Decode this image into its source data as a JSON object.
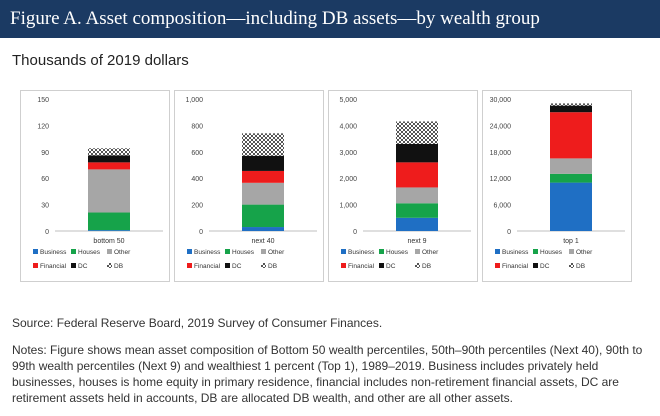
{
  "header": {
    "title": "Figure A. Asset composition—including DB assets—by wealth group"
  },
  "subtitle": "Thousands of 2019 dollars",
  "legend_labels": [
    "Business",
    "Houses",
    "Other",
    "Financial",
    "DC",
    "DB"
  ],
  "colors": {
    "header_bg": "#1b3a63",
    "Business": "#1f6fc4",
    "Houses": "#16a34a",
    "Other": "#a6a6a6",
    "Financial": "#ee1c1c",
    "DC": "#111111",
    "DB": "hatch-gray"
  },
  "chart_data": [
    {
      "type": "bar",
      "stacked": true,
      "categories": [
        "bottom 50"
      ],
      "yticks": [
        "0",
        "30",
        "60",
        "90",
        "120",
        "150"
      ],
      "ylim": [
        0,
        150
      ],
      "series": [
        {
          "name": "Business",
          "values": [
            1
          ]
        },
        {
          "name": "Houses",
          "values": [
            20
          ]
        },
        {
          "name": "Other",
          "values": [
            49
          ]
        },
        {
          "name": "Financial",
          "values": [
            8
          ]
        },
        {
          "name": "DC",
          "values": [
            8
          ]
        },
        {
          "name": "DB",
          "values": [
            8
          ]
        }
      ],
      "legend": "bottom"
    },
    {
      "type": "bar",
      "stacked": true,
      "categories": [
        "next 40"
      ],
      "yticks": [
        "0",
        "200",
        "400",
        "600",
        "800",
        "1,000"
      ],
      "ylim": [
        0,
        1000
      ],
      "series": [
        {
          "name": "Business",
          "values": [
            30
          ]
        },
        {
          "name": "Houses",
          "values": [
            170
          ]
        },
        {
          "name": "Other",
          "values": [
            165
          ]
        },
        {
          "name": "Financial",
          "values": [
            90
          ]
        },
        {
          "name": "DC",
          "values": [
            115
          ]
        },
        {
          "name": "DB",
          "values": [
            170
          ]
        }
      ],
      "legend": "bottom"
    },
    {
      "type": "bar",
      "stacked": true,
      "categories": [
        "next 9"
      ],
      "yticks": [
        "0",
        "1,000",
        "2,000",
        "3,000",
        "4,000",
        "5,000"
      ],
      "ylim": [
        0,
        5000
      ],
      "series": [
        {
          "name": "Business",
          "values": [
            500
          ]
        },
        {
          "name": "Houses",
          "values": [
            550
          ]
        },
        {
          "name": "Other",
          "values": [
            600
          ]
        },
        {
          "name": "Financial",
          "values": [
            950
          ]
        },
        {
          "name": "DC",
          "values": [
            700
          ]
        },
        {
          "name": "DB",
          "values": [
            850
          ]
        }
      ],
      "legend": "bottom"
    },
    {
      "type": "bar",
      "stacked": true,
      "categories": [
        "top 1"
      ],
      "yticks": [
        "0",
        "6,000",
        "12,000",
        "18,000",
        "24,000",
        "30,000"
      ],
      "ylim": [
        0,
        30000
      ],
      "series": [
        {
          "name": "Business",
          "values": [
            11000
          ]
        },
        {
          "name": "Houses",
          "values": [
            2000
          ]
        },
        {
          "name": "Other",
          "values": [
            3500
          ]
        },
        {
          "name": "Financial",
          "values": [
            10500
          ]
        },
        {
          "name": "DC",
          "values": [
            1500
          ]
        },
        {
          "name": "DB",
          "values": [
            500
          ]
        }
      ],
      "legend": "bottom"
    }
  ],
  "source": "Source: Federal Reserve Board, 2019 Survey of Consumer Finances.",
  "notes": "Notes: Figure shows mean asset composition of Bottom 50 wealth percentiles, 50th–90th percentiles (Next 40), 90th to 99th wealth percentiles (Next 9) and wealthiest 1 percent (Top 1), 1989–2019. Business includes privately held businesses, houses is home equity in primary residence, financial includes non-retirement financial assets, DC are retirement assets held in accounts, DB are allocated DB wealth, and other are all other assets."
}
